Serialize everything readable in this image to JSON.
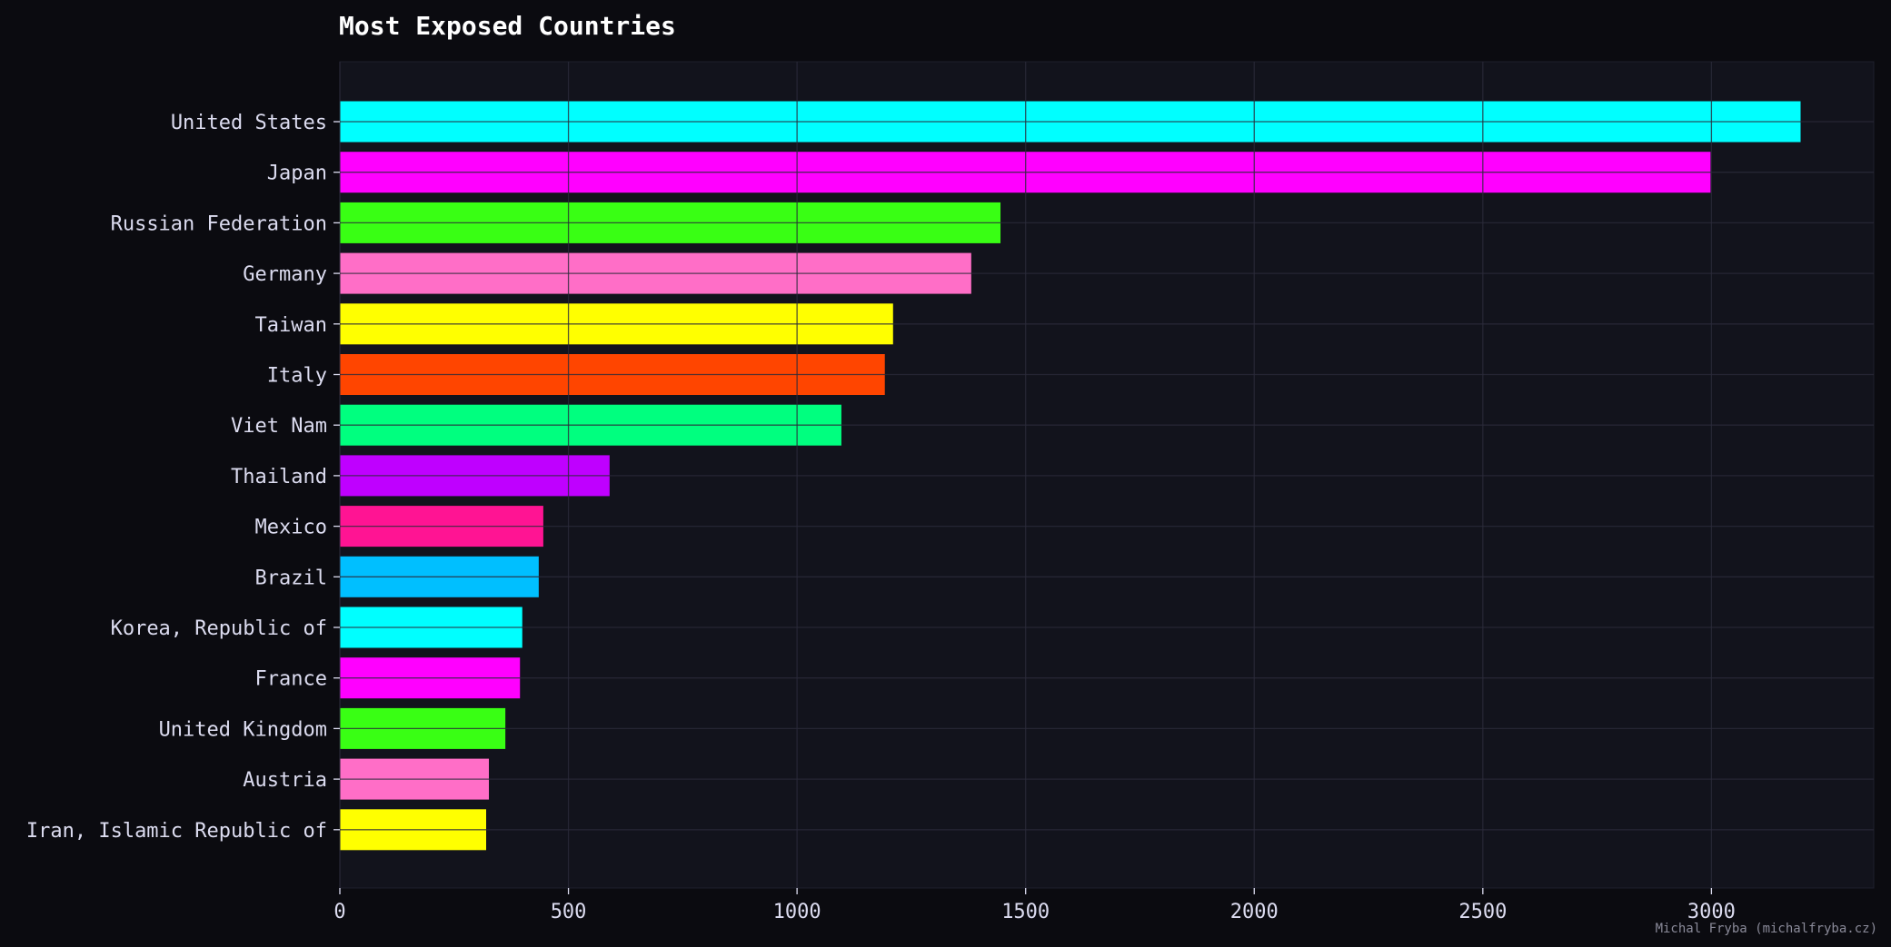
{
  "chart_data": {
    "type": "bar",
    "orientation": "horizontal",
    "title": "Most Exposed Countries",
    "xlabel": "",
    "ylabel": "",
    "categories": [
      "United States",
      "Japan",
      "Russian Federation",
      "Germany",
      "Taiwan",
      "Italy",
      "Viet Nam",
      "Thailand",
      "Mexico",
      "Brazil",
      "Korea, Republic of",
      "France",
      "United Kingdom",
      "Austria",
      "Iran, Islamic Republic of"
    ],
    "values": [
      3195,
      2998,
      1445,
      1381,
      1210,
      1192,
      1097,
      590,
      445,
      435,
      399,
      394,
      362,
      326,
      320
    ],
    "colors": [
      "#00ffff",
      "#ff00ff",
      "#39ff14",
      "#ff6ec7",
      "#ffff00",
      "#ff4500",
      "#00ff7f",
      "#bf00ff",
      "#ff1493",
      "#00bfff",
      "#00ffff",
      "#ff00ff",
      "#39ff14",
      "#ff6ec7",
      "#ffff00"
    ],
    "xlim": [
      0,
      3355
    ],
    "xticks": [
      "0",
      "500",
      "1000",
      "1500",
      "2000",
      "2500",
      "3000"
    ],
    "xtick_values": [
      0,
      500,
      1000,
      1500,
      2000,
      2500,
      3000
    ],
    "grid": true,
    "credit": "Michal Fryba (michalfryba.cz)"
  }
}
